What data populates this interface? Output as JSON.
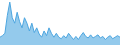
{
  "chart_data": {
    "type": "area",
    "values": [
      10,
      12,
      15,
      38,
      55,
      35,
      28,
      42,
      30,
      22,
      35,
      28,
      18,
      28,
      16,
      22,
      14,
      10,
      18,
      12,
      22,
      15,
      10,
      15,
      10,
      8,
      12,
      9,
      15,
      11,
      7,
      11,
      7,
      12,
      16,
      11,
      9,
      13,
      9,
      11,
      13,
      9,
      11,
      7,
      10,
      12,
      8,
      10,
      12,
      10
    ],
    "color": "#4DA6E0",
    "ylim": [
      0,
      57.75
    ],
    "tick_labels": false
  }
}
